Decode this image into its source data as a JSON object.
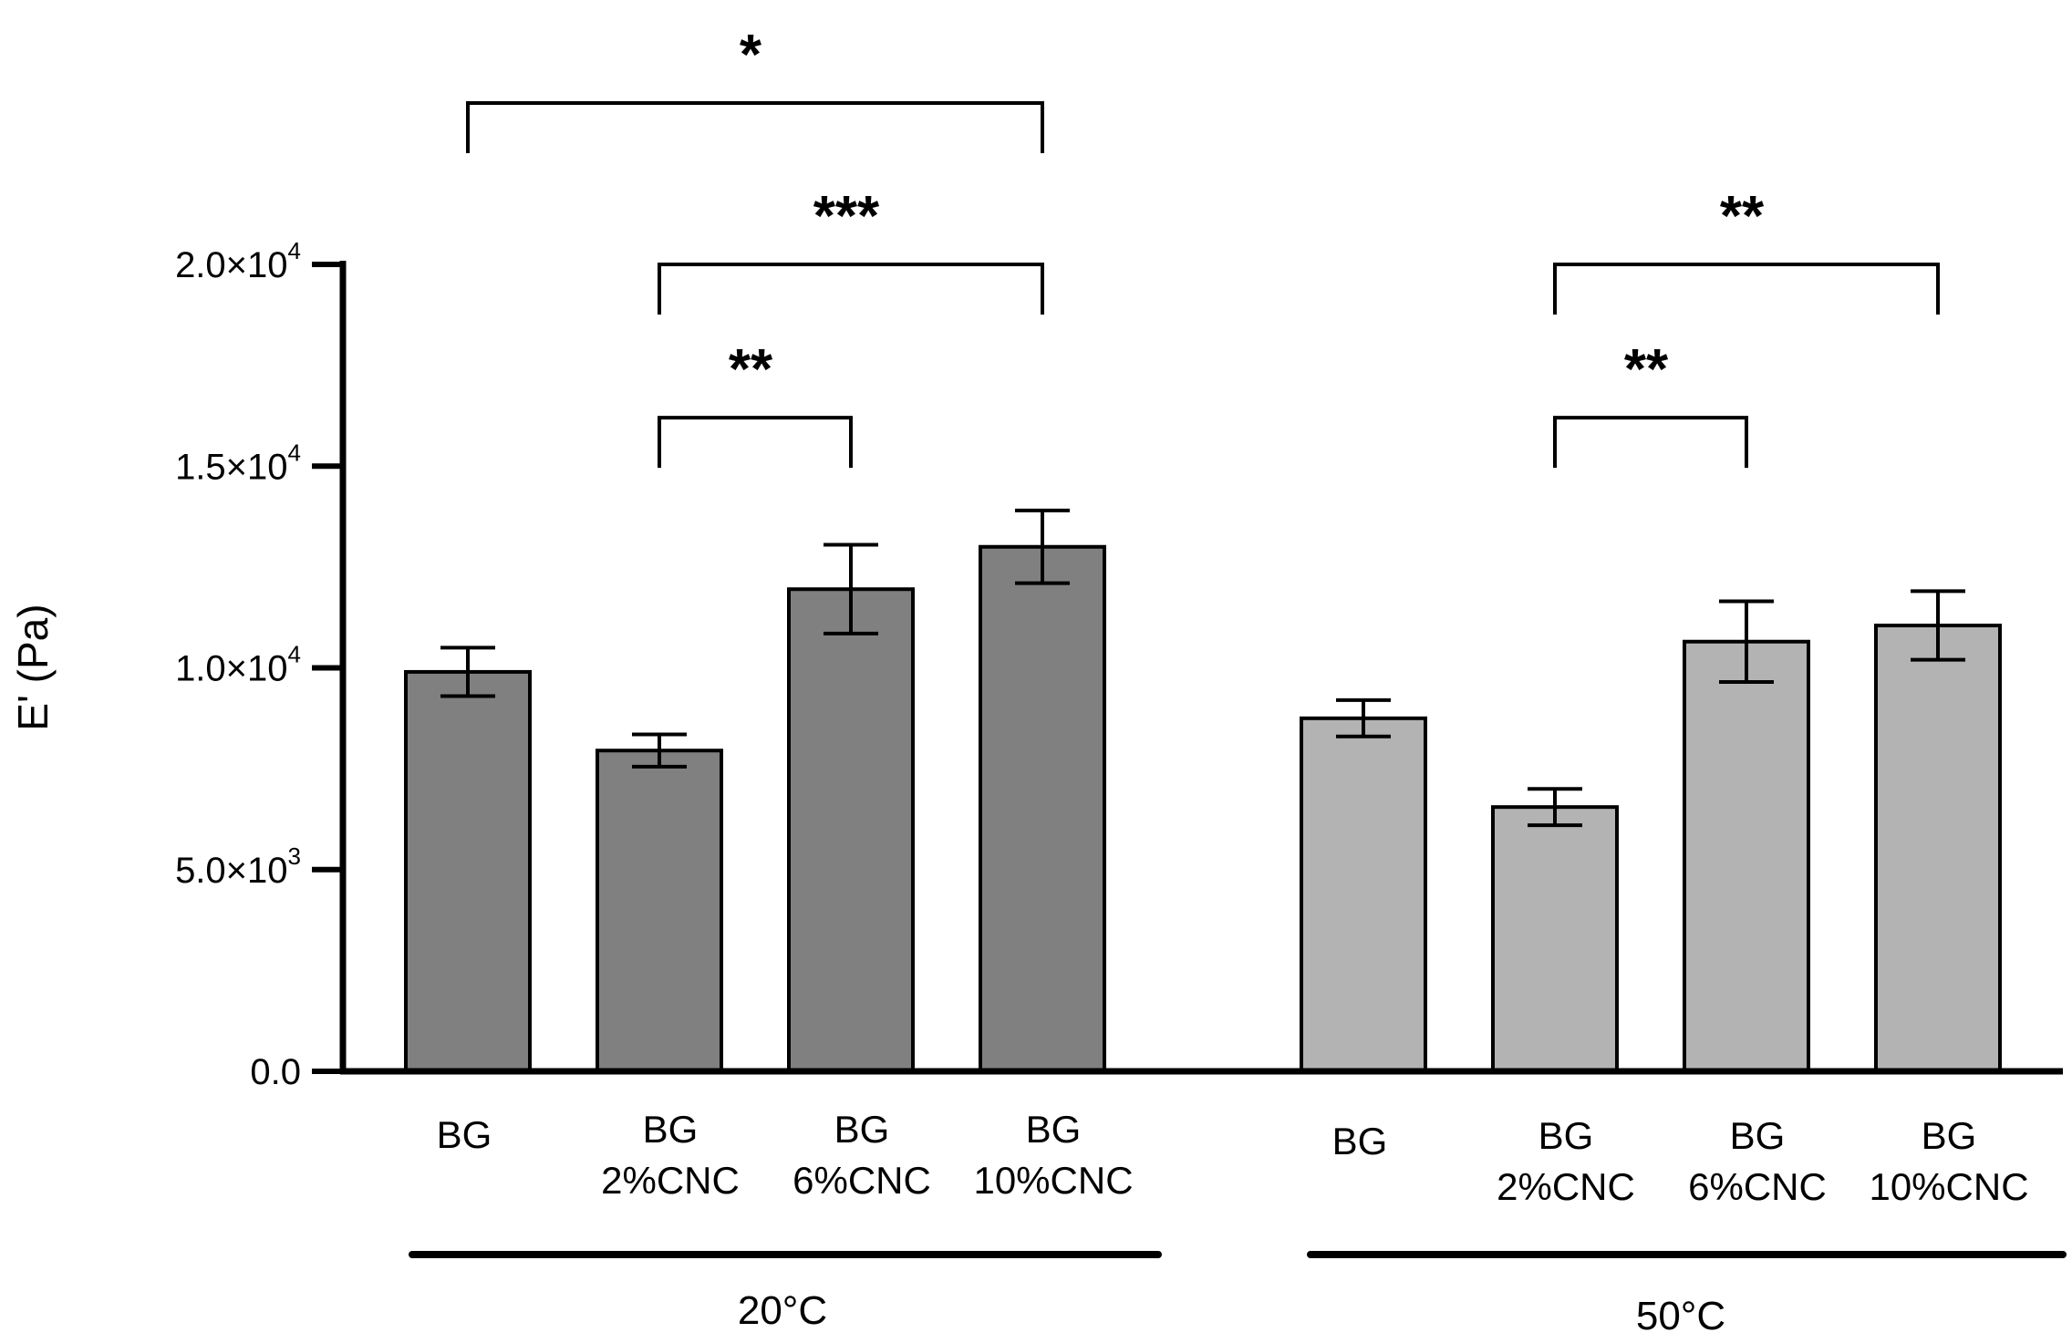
{
  "chart_data": {
    "type": "bar",
    "title": "",
    "xlabel": "",
    "ylabel": "E' (Pa)",
    "ylim": [
      0,
      20000
    ],
    "yticks": [
      {
        "value": 0,
        "mantissa": "0.0",
        "exponent": ""
      },
      {
        "value": 5000,
        "mantissa": "5.0×10",
        "exponent": "3"
      },
      {
        "value": 10000,
        "mantissa": "1.0×10",
        "exponent": "4"
      },
      {
        "value": 15000,
        "mantissa": "1.5×10",
        "exponent": "4"
      },
      {
        "value": 20000,
        "mantissa": "2.0×10",
        "exponent": "4"
      }
    ],
    "groups": [
      {
        "label": "20°C",
        "color": "#808080",
        "bars": [
          {
            "line1": "BG",
            "line2": "",
            "value": 9900,
            "error": 600
          },
          {
            "line1": "BG",
            "line2": "2%CNC",
            "value": 7950,
            "error": 400
          },
          {
            "line1": "BG",
            "line2": "6%CNC",
            "value": 11950,
            "error": 1100
          },
          {
            "line1": "BG",
            "line2": "10%CNC",
            "value": 13000,
            "error": 900
          }
        ]
      },
      {
        "label": "50°C",
        "color": "#b3b3b3",
        "bars": [
          {
            "line1": "BG",
            "line2": "",
            "value": 8750,
            "error": 450
          },
          {
            "line1": "BG",
            "line2": "2%CNC",
            "value": 6550,
            "error": 450
          },
          {
            "line1": "BG",
            "line2": "6%CNC",
            "value": 10650,
            "error": 1000
          },
          {
            "line1": "BG",
            "line2": "10%CNC",
            "value": 11050,
            "error": 850
          }
        ]
      }
    ],
    "significance": [
      {
        "group": 0,
        "from": 0,
        "to": 3,
        "label": "*",
        "level": 24000
      },
      {
        "group": 0,
        "from": 1,
        "to": 3,
        "label": "***",
        "level": 20000
      },
      {
        "group": 0,
        "from": 1,
        "to": 2,
        "label": "**",
        "level": 16200
      },
      {
        "group": 1,
        "from": 1,
        "to": 3,
        "label": "**",
        "level": 20000
      },
      {
        "group": 1,
        "from": 1,
        "to": 2,
        "label": "**",
        "level": 16200
      }
    ]
  }
}
